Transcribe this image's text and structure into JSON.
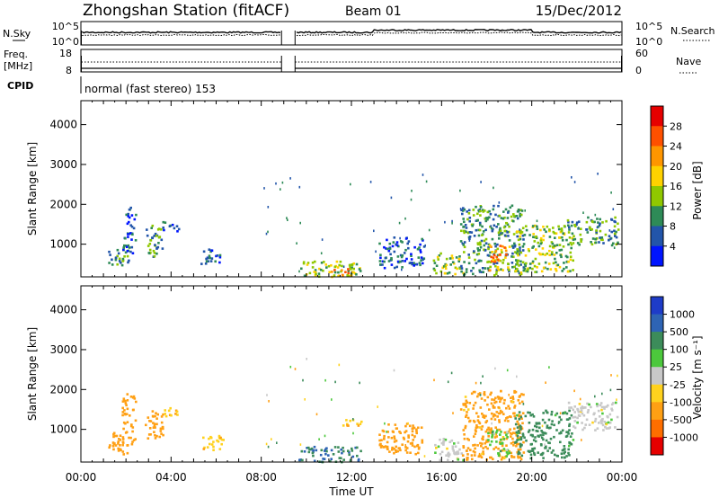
{
  "header": {
    "station": "Zhongshan Station (fitACF)",
    "beam": "Beam 01",
    "date": "15/Dec/2012"
  },
  "status_panel": {
    "nsky_label": "N.Sky",
    "nsky_ticks": [
      "10^5",
      "10^0"
    ],
    "nsearch_label": "N.Search",
    "nsearch_ticks": [
      "10^5",
      "10^0"
    ],
    "freq_label_line1": "Freq.",
    "freq_label_line2": "[MHz]",
    "freq_ticks": [
      "18",
      "8"
    ],
    "nave_label": "Nave",
    "nave_ticks": [
      "60",
      "0"
    ],
    "cpid_label": "CPID",
    "cpid_text": "normal (fast stereo) 153",
    "gap_start_hour": 8.9,
    "gap_end_hour": 9.5
  },
  "chart_data": [
    {
      "type": "heatmap",
      "name": "power",
      "ylabel": "Slant Range [km]",
      "xlabel": "",
      "x_range_hours": [
        0,
        24
      ],
      "ylim": [
        180,
        4600
      ],
      "yticks": [
        "1000",
        "2000",
        "3000",
        "4000"
      ],
      "colorbar": {
        "label": "Power [dB]",
        "ticks": [
          "28",
          "24",
          "20",
          "16",
          "12",
          "8",
          "4"
        ],
        "colors": [
          "#e60000",
          "#ff5000",
          "#ff9600",
          "#ffd200",
          "#90c800",
          "#2e8b57",
          "#2255aa",
          "#0014ff"
        ]
      },
      "echo_regions": [
        {
          "t0": 1.2,
          "t1": 2.1,
          "r0": 400,
          "r1": 900,
          "val": 12
        },
        {
          "t0": 1.8,
          "t1": 2.4,
          "r0": 800,
          "r1": 1950,
          "val": 8
        },
        {
          "t0": 2.8,
          "t1": 3.6,
          "r0": 700,
          "r1": 1500,
          "val": 12
        },
        {
          "t0": 3.5,
          "t1": 4.3,
          "r0": 1350,
          "r1": 1600,
          "val": 8
        },
        {
          "t0": 5.3,
          "t1": 6.3,
          "r0": 500,
          "r1": 900,
          "val": 8
        },
        {
          "t0": 9.6,
          "t1": 12.4,
          "r0": 200,
          "r1": 600,
          "val": 16
        },
        {
          "t0": 11.0,
          "t1": 12.0,
          "r0": 220,
          "r1": 420,
          "val": 24
        },
        {
          "t0": 13.2,
          "t1": 15.2,
          "r0": 400,
          "r1": 1200,
          "val": 8
        },
        {
          "t0": 15.6,
          "t1": 17.0,
          "r0": 250,
          "r1": 800,
          "val": 16
        },
        {
          "t0": 16.8,
          "t1": 19.6,
          "r0": 250,
          "r1": 2000,
          "val": 12
        },
        {
          "t0": 18.0,
          "t1": 19.0,
          "r0": 350,
          "r1": 1000,
          "val": 24
        },
        {
          "t0": 19.2,
          "t1": 21.8,
          "r0": 300,
          "r1": 1500,
          "val": 16
        },
        {
          "t0": 21.5,
          "t1": 23.8,
          "r0": 1000,
          "r1": 1700,
          "val": 12
        }
      ]
    },
    {
      "type": "heatmap",
      "name": "velocity",
      "ylabel": "Slant Range [km]",
      "xlabel": "Time UT",
      "x_range_hours": [
        0,
        24
      ],
      "xticks": [
        "00:00",
        "04:00",
        "08:00",
        "12:00",
        "16:00",
        "20:00",
        "00:00"
      ],
      "ylim": [
        180,
        4600
      ],
      "yticks": [
        "1000",
        "2000",
        "3000",
        "4000"
      ],
      "colorbar": {
        "label": "Velocity [m s⁻¹]",
        "ticks": [
          "1000",
          "500",
          "100",
          "25",
          "-25",
          "-100",
          "-500",
          "-1000"
        ],
        "colors": [
          "#1e3cc8",
          "#2e64b4",
          "#3c8c5a",
          "#4cc83c",
          "#c8c8c8",
          "#ffd21e",
          "#ffa014",
          "#ff6e00",
          "#e60000"
        ]
      },
      "echo_regions": [
        {
          "t0": 1.2,
          "t1": 2.4,
          "r0": 400,
          "r1": 950,
          "val": -250
        },
        {
          "t0": 1.8,
          "t1": 2.4,
          "r0": 800,
          "r1": 1950,
          "val": -200
        },
        {
          "t0": 2.8,
          "t1": 3.6,
          "r0": 700,
          "r1": 1500,
          "val": -250
        },
        {
          "t0": 3.5,
          "t1": 4.3,
          "r0": 1350,
          "r1": 1600,
          "val": -80
        },
        {
          "t0": 5.3,
          "t1": 6.3,
          "r0": 500,
          "r1": 900,
          "val": -80
        },
        {
          "t0": 9.6,
          "t1": 12.4,
          "r0": 200,
          "r1": 600,
          "val": 500
        },
        {
          "t0": 11.5,
          "t1": 12.5,
          "r0": 1100,
          "r1": 1300,
          "val": -80
        },
        {
          "t0": 13.2,
          "t1": 15.2,
          "r0": 400,
          "r1": 1200,
          "val": -250
        },
        {
          "t0": 15.6,
          "t1": 17.0,
          "r0": 250,
          "r1": 800,
          "val": 0
        },
        {
          "t0": 16.8,
          "t1": 19.6,
          "r0": 250,
          "r1": 2000,
          "val": -200
        },
        {
          "t0": 18.0,
          "t1": 19.0,
          "r0": 350,
          "r1": 1000,
          "val": 60
        },
        {
          "t0": 19.2,
          "t1": 21.8,
          "r0": 300,
          "r1": 1500,
          "val": 200
        },
        {
          "t0": 21.5,
          "t1": 23.8,
          "r0": 1000,
          "r1": 1700,
          "val": 0
        }
      ]
    }
  ]
}
